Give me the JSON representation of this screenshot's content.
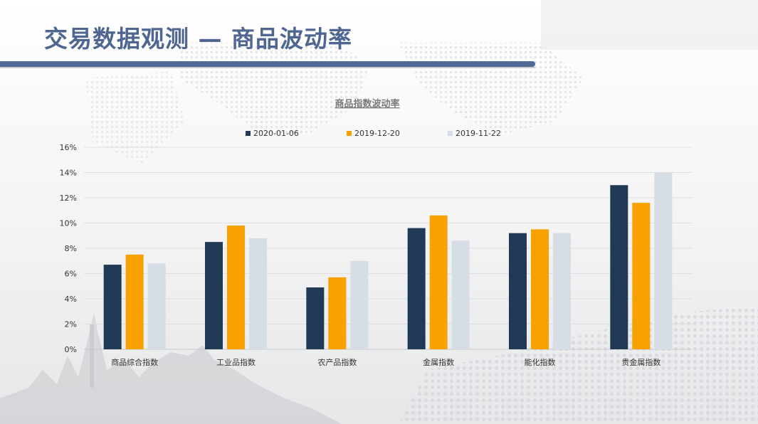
{
  "header": {
    "title": "交易数据观测 — 商品波动率"
  },
  "colors": {
    "title": "#4f6691",
    "band": "#516b96"
  },
  "chart_data": {
    "type": "bar",
    "title": "商品指数波动率",
    "xlabel": "",
    "ylabel": "",
    "categories": [
      "商品综合指数",
      "工业品指数",
      "农产品指数",
      "金属指数",
      "能化指数",
      "贵金属指数"
    ],
    "series": [
      {
        "name": "2020-01-06",
        "color": "#203a56",
        "values": [
          6.7,
          8.5,
          4.9,
          9.6,
          9.2,
          13.0
        ]
      },
      {
        "name": "2019-12-20",
        "color": "#f9a100",
        "values": [
          7.5,
          9.8,
          5.7,
          10.6,
          9.5,
          11.6
        ]
      },
      {
        "name": "2019-11-22",
        "color": "#d7dde5",
        "values": [
          6.8,
          8.8,
          7.0,
          8.6,
          9.2,
          14.0
        ]
      }
    ],
    "ylim": [
      0,
      16
    ],
    "yticks": [
      0,
      2,
      4,
      6,
      8,
      10,
      12,
      14,
      16
    ],
    "ytick_format": "percent",
    "grid": true,
    "legend": "top"
  }
}
